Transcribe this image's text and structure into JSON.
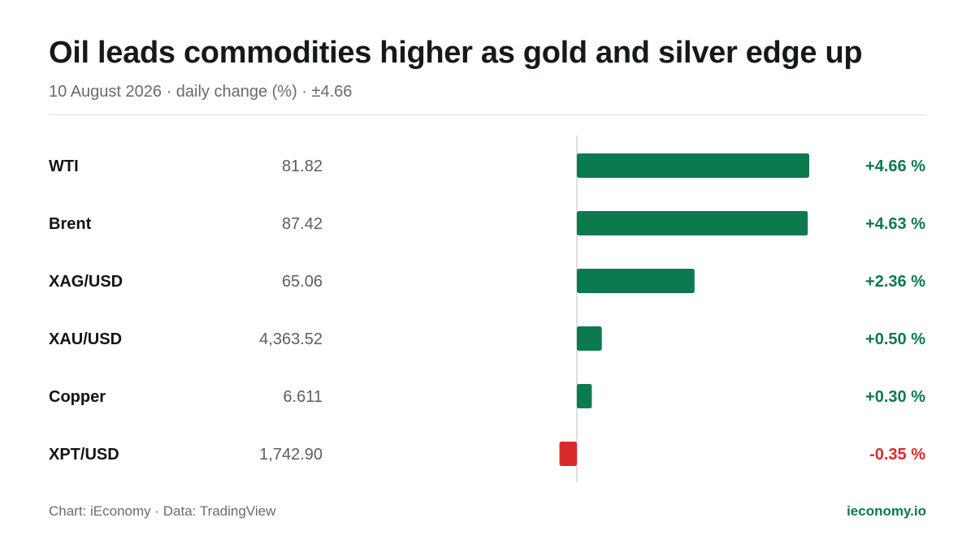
{
  "header": {
    "title": "Oil leads commodities higher as gold and silver edge up",
    "subtitle": "10 August 2026 · daily change (%) · ±4.66"
  },
  "footer": {
    "source": "Chart: iEconomy · Data: TradingView",
    "brand": "ieconomy.io"
  },
  "colors": {
    "positive": "#0b7a4f",
    "negative": "#d92b2b",
    "axis": "#d4d4d4"
  },
  "chart_data": {
    "type": "bar",
    "orientation": "horizontal",
    "categories": [
      "WTI",
      "Brent",
      "XAG/USD",
      "XAU/USD",
      "Copper",
      "XPT/USD"
    ],
    "prices": [
      "81.82",
      "87.42",
      "65.06",
      "4,363.52",
      "6.611",
      "1,742.90"
    ],
    "values": [
      4.66,
      4.63,
      2.36,
      0.5,
      0.3,
      -0.35
    ],
    "value_labels": [
      "+4.66 %",
      "+4.63 %",
      "+2.36 %",
      "+0.50 %",
      "+0.30 %",
      "-0.35 %"
    ],
    "xlim": [
      -4.66,
      4.66
    ],
    "grid": false,
    "legend": "none"
  }
}
